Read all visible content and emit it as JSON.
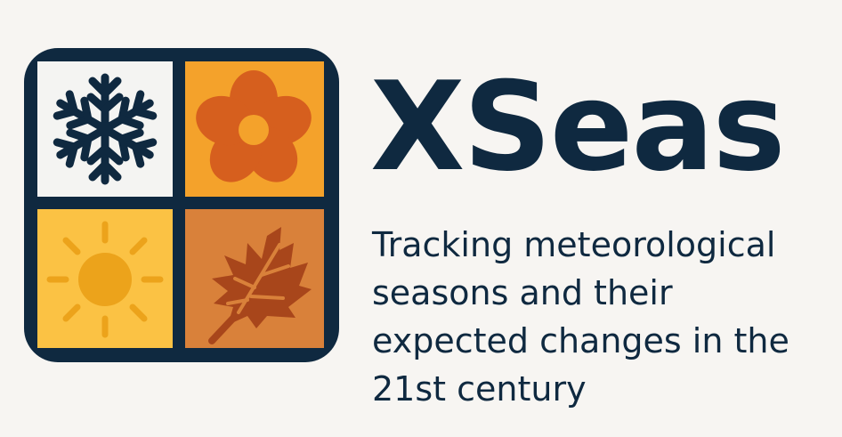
{
  "brand": {
    "name": "XSeas",
    "tagline": "Tracking meteorological seasons and their expected changes in the 21st century"
  },
  "logo": {
    "tiles": [
      {
        "icon": "snowflake-icon",
        "color": "#f4f4f2"
      },
      {
        "icon": "flower-icon",
        "color": "#f4a22b"
      },
      {
        "icon": "sun-icon",
        "color": "#fbc244"
      },
      {
        "icon": "leaf-icon",
        "color": "#d9813a"
      }
    ]
  },
  "colors": {
    "navy": "#0f2940",
    "background": "#f7f5f2",
    "flower": "#d65f1e",
    "sun": "#eca31b",
    "leaf": "#a8461b"
  }
}
